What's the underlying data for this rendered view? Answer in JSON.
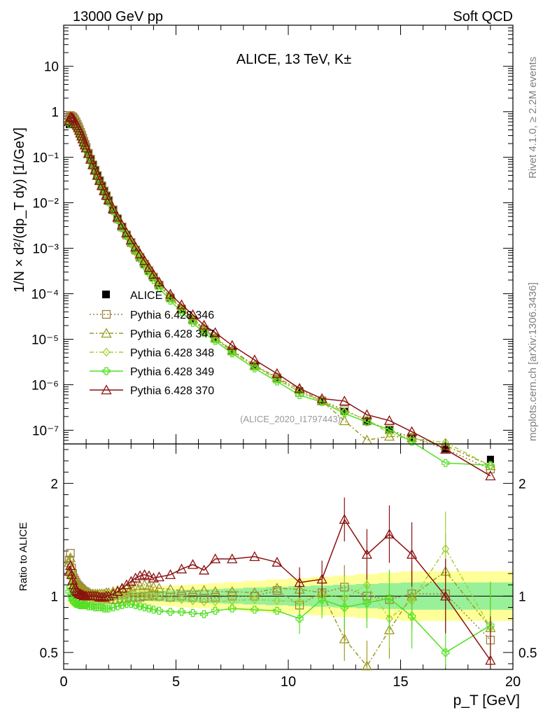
{
  "header": {
    "left": "13000 GeV pp",
    "right": "Soft QCD"
  },
  "side": {
    "rivet": "Rivet 4.1.0, ≥ 2.2M events",
    "mcplots": "mcplots.cern.ch [arXiv:1306.3436]"
  },
  "chart_data": {
    "type": "line",
    "title": "ALICE, 13 TeV, K±",
    "analysis_id": "(ALICE_2020_I1797443)",
    "xlabel": "p_T [GeV]",
    "ylabel": "1/N × d²/(dp_T dy) [1/GeV]",
    "ratio_ylabel": "Ratio to ALICE",
    "xlim": [
      0,
      20
    ],
    "ylim": [
      5e-08,
      80
    ],
    "ratio_ylim": [
      0.35,
      2.35
    ],
    "x_ticks": [
      "0",
      "5",
      "10",
      "15",
      "20"
    ],
    "y_ticks": [
      "10⁻⁷",
      "10⁻⁶",
      "10⁻⁵",
      "10⁻⁴",
      "10⁻³",
      "10⁻²",
      "10⁻¹",
      "1",
      "10"
    ],
    "ratio_ticks": [
      "0.5",
      "1",
      "2"
    ],
    "x": [
      0.25,
      0.3,
      0.35,
      0.4,
      0.45,
      0.5,
      0.55,
      0.6,
      0.65,
      0.7,
      0.75,
      0.8,
      0.85,
      0.9,
      0.95,
      1.0,
      1.1,
      1.2,
      1.3,
      1.4,
      1.5,
      1.6,
      1.7,
      1.8,
      1.9,
      2.0,
      2.2,
      2.4,
      2.6,
      2.8,
      3.0,
      3.2,
      3.4,
      3.6,
      3.8,
      4.0,
      4.25,
      4.75,
      5.25,
      5.75,
      6.25,
      6.75,
      7.5,
      8.5,
      9.5,
      10.5,
      11.5,
      12.5,
      13.5,
      14.5,
      15.5,
      17.0,
      19.0
    ],
    "data": {
      "name": "ALICE",
      "values": [
        0.52,
        0.6,
        0.63,
        0.64,
        0.62,
        0.58,
        0.53,
        0.48,
        0.43,
        0.38,
        0.33,
        0.29,
        0.25,
        0.215,
        0.185,
        0.16,
        0.12,
        0.09,
        0.068,
        0.052,
        0.04,
        0.031,
        0.024,
        0.0185,
        0.0145,
        0.0115,
        0.0072,
        0.0046,
        0.003,
        0.002,
        0.00135,
        0.00092,
        0.00064,
        0.00045,
        0.00032,
        0.00023,
        0.000155,
        8.2e-05,
        4.6e-05,
        2.7e-05,
        1.65e-05,
        1.05e-05,
        5.5e-06,
        2.6e-06,
        1.35e-06,
        7.4e-07,
        4.3e-07,
        2.6e-07,
        1.6e-07,
        1.05e-07,
        6.8e-08,
        3.8e-08,
        2.3e-08
      ]
    },
    "series": [
      {
        "name": "Pythia 6.428 346",
        "color": "#a08040",
        "marker": "square-open",
        "dash": "2,3",
        "ratio": [
          1.32,
          1.38,
          1.25,
          1.2,
          1.16,
          1.14,
          1.12,
          1.1,
          1.09,
          1.08,
          1.07,
          1.06,
          1.05,
          1.04,
          1.04,
          1.03,
          1.02,
          1.01,
          1.0,
          1.0,
          0.99,
          0.99,
          0.98,
          0.98,
          0.98,
          0.97,
          0.97,
          0.97,
          0.98,
          0.98,
          0.99,
          0.99,
          0.99,
          1.0,
          1.0,
          1.01,
          1.0,
          0.99,
          1.0,
          0.99,
          0.98,
          0.99,
          1.0,
          1.0,
          1.05,
          0.92,
          1.03,
          1.08,
          1.0,
          0.97,
          1.02,
          1.02,
          0.61
        ]
      },
      {
        "name": "Pythia 6.428 347",
        "color": "#9a9a20",
        "marker": "triangle-open",
        "dash": "6,3,2,3",
        "ratio": [
          1.3,
          1.34,
          1.24,
          1.19,
          1.15,
          1.13,
          1.11,
          1.1,
          1.09,
          1.08,
          1.07,
          1.06,
          1.05,
          1.05,
          1.04,
          1.03,
          1.03,
          1.02,
          1.02,
          1.02,
          1.02,
          1.02,
          1.02,
          1.02,
          1.03,
          1.03,
          1.04,
          1.05,
          1.06,
          1.07,
          1.08,
          1.09,
          1.09,
          1.1,
          1.09,
          1.08,
          1.07,
          1.06,
          1.05,
          1.04,
          1.05,
          1.04,
          1.04,
          1.03,
          1.07,
          1.06,
          1.03,
          0.62,
          0.38,
          0.7,
          1.0,
          1.22,
          0.72
        ]
      },
      {
        "name": "Pythia 6.428 348",
        "color": "#a0d030",
        "marker": "diamond-open",
        "dash": "6,3,2,3",
        "ratio": [
          1.18,
          1.22,
          1.16,
          1.12,
          1.09,
          1.07,
          1.05,
          1.04,
          1.03,
          1.02,
          1.01,
          1.0,
          0.99,
          0.99,
          0.98,
          0.98,
          0.97,
          0.97,
          0.96,
          0.96,
          0.96,
          0.96,
          0.96,
          0.96,
          0.97,
          0.97,
          0.98,
          0.99,
          1.0,
          1.0,
          1.01,
          1.01,
          1.01,
          1.01,
          1.0,
          1.0,
          0.99,
          0.98,
          0.97,
          0.96,
          0.95,
          0.95,
          0.96,
          0.97,
          0.96,
          0.95,
          1.02,
          0.98,
          1.1,
          0.8,
          0.96,
          1.42,
          0.72
        ]
      },
      {
        "name": "Pythia 6.428 349",
        "color": "#50e020",
        "marker": "cross-open",
        "dash": "",
        "ratio": [
          1.04,
          1.08,
          1.0,
          0.97,
          0.95,
          0.94,
          0.93,
          0.93,
          0.93,
          0.92,
          0.92,
          0.92,
          0.92,
          0.92,
          0.92,
          0.92,
          0.91,
          0.91,
          0.91,
          0.9,
          0.9,
          0.9,
          0.9,
          0.89,
          0.89,
          0.89,
          0.9,
          0.91,
          0.92,
          0.93,
          0.93,
          0.92,
          0.91,
          0.9,
          0.89,
          0.88,
          0.87,
          0.86,
          0.86,
          0.85,
          0.84,
          0.87,
          0.89,
          0.88,
          0.87,
          0.8,
          0.97,
          0.9,
          0.94,
          0.98,
          0.82,
          0.5,
          0.74
        ]
      },
      {
        "name": "Pythia 6.428 370",
        "color": "#8b1010",
        "marker": "triangle-open",
        "dash": "",
        "ratio": [
          1.22,
          1.27,
          1.19,
          1.14,
          1.1,
          1.07,
          1.05,
          1.04,
          1.03,
          1.02,
          1.02,
          1.01,
          1.01,
          1.0,
          1.0,
          1.0,
          1.0,
          1.0,
          1.0,
          1.0,
          1.0,
          0.99,
          0.99,
          0.99,
          1.0,
          1.0,
          1.02,
          1.04,
          1.07,
          1.1,
          1.13,
          1.16,
          1.18,
          1.19,
          1.18,
          1.16,
          1.17,
          1.19,
          1.24,
          1.28,
          1.23,
          1.33,
          1.33,
          1.35,
          1.3,
          1.12,
          1.15,
          1.68,
          1.37,
          1.55,
          1.37,
          1.0,
          0.43
        ]
      }
    ]
  }
}
